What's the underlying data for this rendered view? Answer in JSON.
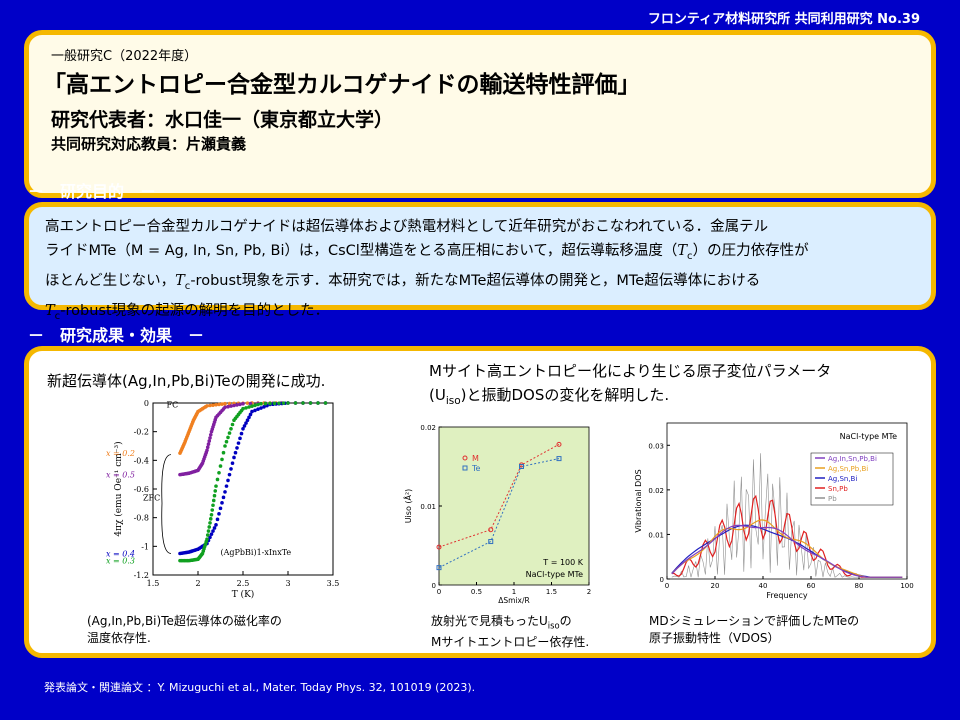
{
  "header": {
    "tag": "フロンティア材料研究所 共同利用研究 No.39"
  },
  "title": {
    "category": "一般研究C（2022年度）",
    "main": "「高エントロピー合金型カルコゲナイドの輸送特性評価」",
    "pi": "研究代表者：水口佳一（東京都立大学）",
    "counterpart": "共同研究対応教員：片瀬貴義"
  },
  "purpose": {
    "heading": "－　研究目的　－",
    "line1": "高エントロピー合金型カルコゲナイドは超伝導体および熱電材料として近年研究がおこなわれている．金属テル",
    "line2a": "ライドMTe（M = Ag, In, Sn, Pb, Bi）は，CsCl型構造をとる高圧相において，超伝導転移温度（",
    "line2b": "）の圧力依存性が",
    "line3a": "ほとんど生じない，",
    "line3b": "-robust現象を示す．本研究では，新たなMTe超伝導体の開発と，MTe超伝導体における",
    "line4b": "-robust現象の起源の解明を目的とした．",
    "tc": "T",
    "tc_sub": "c"
  },
  "results": {
    "heading": "－　研究成果・効果　－",
    "lead_left": "新超伝導体(Ag,In,Pb,Bi)Teの開発に成功.",
    "lead_right_1": "Mサイト高エントロピー化により生じる原子変位パラメータ",
    "lead_right_2a": "(U",
    "lead_right_2_sub": "iso",
    "lead_right_2b": ")と振動DOSの変化を解明した.",
    "cap1_1": "(Ag,In,Pb,Bi)Te超伝導体の磁化率の",
    "cap1_2": "温度依存性.",
    "cap2_1a": "放射光で見積もったU",
    "cap2_1_sub": "iso",
    "cap2_1b": "の",
    "cap2_2": "Mサイトエントロピー依存性.",
    "cap3_1": "MDシミュレーションで評価したMTeの",
    "cap3_2": "原子振動特性（VDOS）"
  },
  "chart_data": [
    {
      "type": "line",
      "xlabel": "T (K)",
      "ylabel": "4πχ (emu Oe⁻¹ cm⁻³)",
      "xlim": [
        1.5,
        3.5
      ],
      "ylim": [
        -1.2,
        0
      ],
      "xticks": [
        "1.5",
        "2",
        "2.5",
        "3",
        "3.5"
      ],
      "yticks": [
        "0",
        "-0.2",
        "-0.4",
        "-0.6",
        "-0.8",
        "-1",
        "-1.2"
      ],
      "annotations": [
        "FC",
        "ZFC",
        "(AgPbBi)1-xInxTe"
      ],
      "series": [
        {
          "name": "x = 0.2",
          "color": "#f08020",
          "x": [
            1.8,
            1.85,
            1.9,
            1.95,
            2.0,
            2.1,
            2.3,
            2.6,
            3.0,
            3.5
          ],
          "y": [
            -0.35,
            -0.28,
            -0.2,
            -0.12,
            -0.06,
            -0.02,
            -0.005,
            0,
            0,
            0
          ]
        },
        {
          "name": "x = 0.5",
          "color": "#8020a0",
          "x": [
            1.8,
            1.9,
            2.0,
            2.05,
            2.1,
            2.15,
            2.2,
            2.3,
            2.5,
            3.0,
            3.5
          ],
          "y": [
            -0.5,
            -0.49,
            -0.47,
            -0.42,
            -0.33,
            -0.2,
            -0.1,
            -0.03,
            -0.005,
            0,
            0
          ]
        },
        {
          "name": "x = 0.4",
          "color": "#0000c0",
          "x": [
            1.8,
            1.9,
            2.0,
            2.1,
            2.2,
            2.3,
            2.4,
            2.5,
            2.6,
            2.8,
            3.0,
            3.5
          ],
          "y": [
            -1.05,
            -1.04,
            -1.02,
            -0.98,
            -0.85,
            -0.62,
            -0.38,
            -0.18,
            -0.06,
            -0.01,
            0,
            0
          ]
        },
        {
          "name": "x = 0.3",
          "color": "#10a020",
          "x": [
            1.8,
            1.9,
            2.0,
            2.05,
            2.1,
            2.15,
            2.2,
            2.3,
            2.4,
            2.5,
            2.7,
            3.0,
            3.5
          ],
          "y": [
            -1.1,
            -1.1,
            -1.09,
            -1.05,
            -0.95,
            -0.78,
            -0.58,
            -0.3,
            -0.12,
            -0.04,
            -0.005,
            0,
            0
          ]
        }
      ]
    },
    {
      "type": "line",
      "xlabel": "ΔSmix/R",
      "ylabel": "Uiso (Å²)",
      "xlim": [
        0,
        2
      ],
      "ylim": [
        0,
        0.02
      ],
      "xticks": [
        "0",
        "0.5",
        "1",
        "1.5",
        "2"
      ],
      "yticks": [
        "0",
        "0.01",
        "0.02"
      ],
      "annotations": [
        "T = 100 K",
        "NaCl-type MTe"
      ],
      "series": [
        {
          "name": "M",
          "color": "#e03030",
          "x": [
            0,
            0.69,
            1.1,
            1.6
          ],
          "y": [
            0.0048,
            0.007,
            0.0152,
            0.0178
          ]
        },
        {
          "name": "Te",
          "color": "#3070c0",
          "x": [
            0,
            0.69,
            1.1,
            1.6
          ],
          "y": [
            0.0022,
            0.0055,
            0.015,
            0.016
          ]
        }
      ]
    },
    {
      "type": "line",
      "title": "NaCl-type MTe",
      "xlabel": "Frequency",
      "ylabel": "Vibrational DOS",
      "xlim": [
        0,
        100
      ],
      "ylim": [
        0,
        0.035
      ],
      "xticks": [
        "0",
        "20",
        "40",
        "60",
        "80",
        "100"
      ],
      "yticks": [
        "0",
        "0.01",
        "0.02",
        "0.03"
      ],
      "series": [
        {
          "name": "Ag,In,Sn,Pb,Bi",
          "color": "#8040c0"
        },
        {
          "name": "Ag,Sn,Pb,Bi",
          "color": "#e8a020"
        },
        {
          "name": "Ag,Sn,Bi",
          "color": "#2020c0"
        },
        {
          "name": "Sn,Pb",
          "color": "#e02020"
        },
        {
          "name": "Pb",
          "color": "#909090"
        }
      ]
    }
  ],
  "footer": {
    "reference": "発表論文・関連論文 ：Y. Mizuguchi et al., Mater. Today Phys. 32, 101019 (2023)."
  }
}
